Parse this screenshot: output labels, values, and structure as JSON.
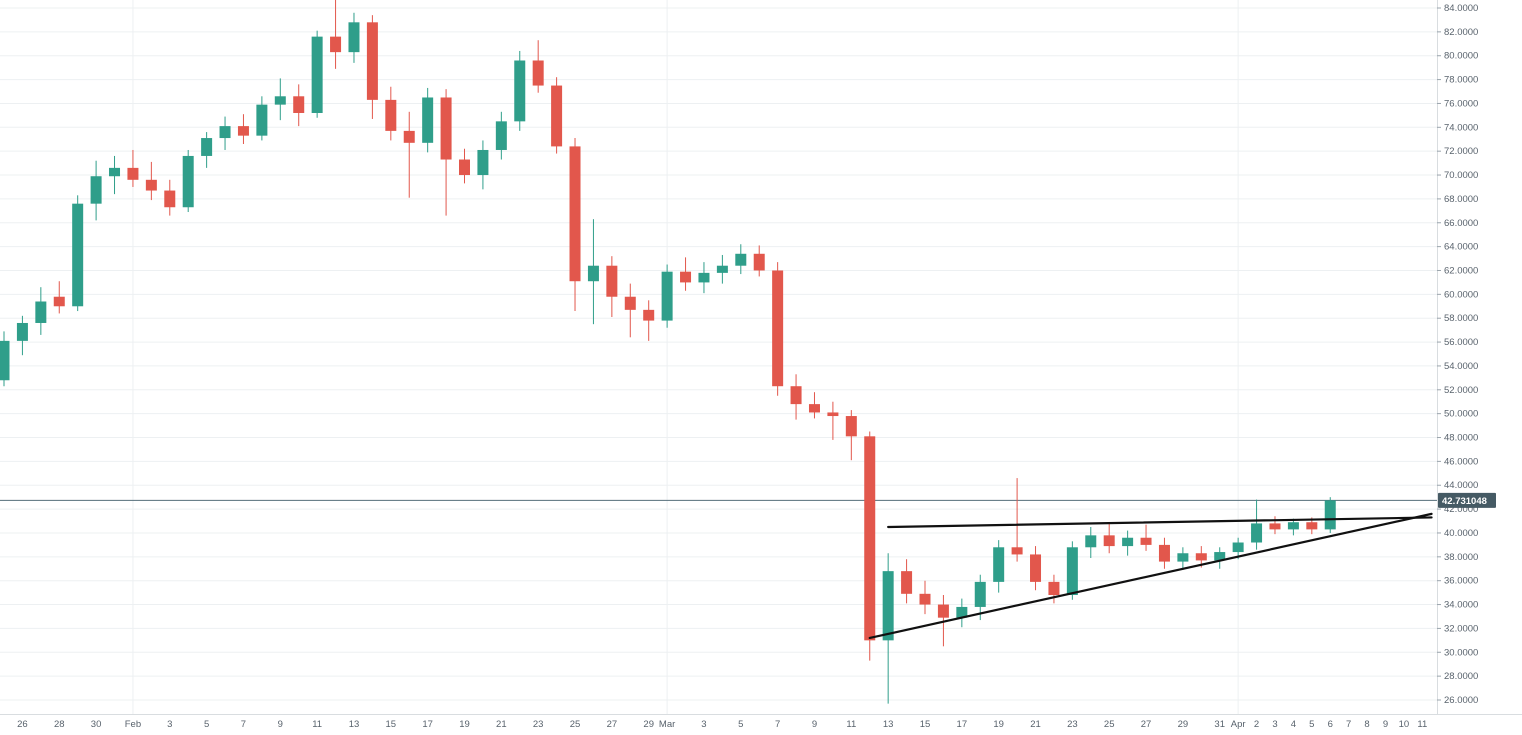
{
  "chart_data": {
    "type": "candlestick",
    "title": "",
    "y_axis": {
      "min": 26,
      "max": 84,
      "step": 2,
      "tick_decimals": 4
    },
    "price_line": {
      "value": 42.731048,
      "label": "42.731048"
    },
    "candles_format": [
      "date",
      "open",
      "high",
      "low",
      "close"
    ],
    "candles": [
      [
        "Jan 25",
        52.8,
        56.9,
        52.3,
        56.1
      ],
      [
        "Jan 26",
        56.1,
        58.2,
        54.9,
        57.6
      ],
      [
        "Jan 27",
        57.6,
        60.6,
        56.6,
        59.4
      ],
      [
        "Jan 28",
        59.8,
        61.1,
        58.4,
        59.0
      ],
      [
        "Jan 29",
        59.0,
        68.3,
        58.6,
        67.6
      ],
      [
        "Jan 30",
        67.6,
        71.2,
        66.2,
        69.9
      ],
      [
        "Jan 31",
        69.9,
        71.6,
        68.4,
        70.6
      ],
      [
        "Feb 1",
        70.6,
        72.1,
        69.0,
        69.6
      ],
      [
        "Feb 2",
        69.6,
        71.1,
        67.9,
        68.7
      ],
      [
        "Feb 3",
        68.7,
        69.6,
        66.6,
        67.3
      ],
      [
        "Feb 4",
        67.3,
        72.1,
        66.9,
        71.6
      ],
      [
        "Feb 5",
        71.6,
        73.6,
        70.6,
        73.1
      ],
      [
        "Feb 6",
        73.1,
        74.9,
        72.1,
        74.1
      ],
      [
        "Feb 7",
        74.1,
        75.1,
        72.6,
        73.3
      ],
      [
        "Feb 8",
        73.3,
        76.6,
        72.9,
        75.9
      ],
      [
        "Feb 9",
        75.9,
        78.1,
        74.6,
        76.6
      ],
      [
        "Feb 10",
        76.6,
        77.6,
        74.1,
        75.2
      ],
      [
        "Feb 11",
        75.2,
        82.1,
        74.8,
        81.6
      ],
      [
        "Feb 12",
        81.6,
        84.7,
        78.9,
        80.3
      ],
      [
        "Feb 13",
        80.3,
        83.6,
        79.4,
        82.8
      ],
      [
        "Feb 14",
        82.8,
        83.4,
        74.7,
        76.3
      ],
      [
        "Feb 15",
        76.3,
        77.4,
        72.9,
        73.7
      ],
      [
        "Feb 16",
        73.7,
        75.3,
        68.1,
        72.7
      ],
      [
        "Feb 17",
        72.7,
        77.3,
        71.9,
        76.5
      ],
      [
        "Feb 18",
        76.5,
        77.2,
        66.6,
        71.3
      ],
      [
        "Feb 19",
        71.3,
        72.2,
        69.3,
        70.0
      ],
      [
        "Feb 20",
        70.0,
        72.9,
        68.8,
        72.1
      ],
      [
        "Feb 21",
        72.1,
        75.3,
        71.3,
        74.5
      ],
      [
        "Feb 22",
        74.5,
        80.4,
        73.7,
        79.6
      ],
      [
        "Feb 23",
        79.6,
        81.3,
        76.9,
        77.5
      ],
      [
        "Feb 24",
        77.5,
        78.2,
        71.8,
        72.4
      ],
      [
        "Feb 25",
        72.4,
        73.1,
        58.6,
        61.1
      ],
      [
        "Feb 26",
        61.1,
        66.3,
        57.5,
        62.4
      ],
      [
        "Feb 27",
        62.4,
        63.2,
        58.1,
        59.8
      ],
      [
        "Feb 28",
        59.8,
        60.9,
        56.4,
        58.7
      ],
      [
        "Feb 29",
        58.7,
        59.5,
        56.1,
        57.8
      ],
      [
        "Mar 1",
        57.8,
        62.5,
        57.2,
        61.9
      ],
      [
        "Mar 2",
        61.9,
        63.1,
        60.3,
        61.0
      ],
      [
        "Mar 3",
        61.0,
        62.7,
        60.1,
        61.8
      ],
      [
        "Mar 4",
        61.8,
        63.3,
        60.9,
        62.4
      ],
      [
        "Mar 5",
        62.4,
        64.2,
        61.7,
        63.4
      ],
      [
        "Mar 6",
        63.4,
        64.1,
        61.5,
        62.0
      ],
      [
        "Mar 7",
        62.0,
        62.7,
        51.5,
        52.3
      ],
      [
        "Mar 8",
        52.3,
        53.3,
        49.5,
        50.8
      ],
      [
        "Mar 9",
        50.8,
        51.8,
        49.6,
        50.1
      ],
      [
        "Mar 10",
        50.1,
        51.0,
        47.8,
        49.8
      ],
      [
        "Mar 11",
        49.8,
        50.3,
        46.1,
        48.1
      ],
      [
        "Mar 12",
        48.1,
        48.5,
        29.3,
        31.0
      ],
      [
        "Mar 13",
        31.0,
        38.3,
        25.7,
        36.8
      ],
      [
        "Mar 14",
        36.8,
        37.8,
        34.1,
        34.9
      ],
      [
        "Mar 15",
        34.9,
        36.0,
        33.2,
        34.0
      ],
      [
        "Mar 16",
        34.0,
        34.8,
        30.5,
        32.9
      ],
      [
        "Mar 17",
        32.9,
        34.5,
        32.1,
        33.8
      ],
      [
        "Mar 18",
        33.8,
        36.5,
        32.7,
        35.9
      ],
      [
        "Mar 19",
        35.9,
        39.4,
        35.0,
        38.8
      ],
      [
        "Mar 20",
        38.8,
        44.6,
        37.6,
        38.2
      ],
      [
        "Mar 21",
        38.2,
        38.9,
        35.2,
        35.9
      ],
      [
        "Mar 22",
        35.9,
        36.5,
        34.1,
        34.8
      ],
      [
        "Mar 23",
        34.8,
        39.3,
        34.4,
        38.8
      ],
      [
        "Mar 24",
        38.8,
        40.5,
        37.9,
        39.8
      ],
      [
        "Mar 25",
        39.8,
        40.8,
        38.3,
        38.9
      ],
      [
        "Mar 26",
        38.9,
        40.2,
        38.1,
        39.6
      ],
      [
        "Mar 27",
        39.6,
        40.7,
        38.5,
        39.0
      ],
      [
        "Mar 28",
        39.0,
        39.6,
        37.0,
        37.6
      ],
      [
        "Mar 29",
        37.6,
        38.8,
        36.9,
        38.3
      ],
      [
        "Mar 30",
        38.3,
        38.9,
        37.1,
        37.7
      ],
      [
        "Mar 31",
        37.7,
        38.8,
        37.0,
        38.4
      ],
      [
        "Apr 1",
        38.4,
        39.6,
        37.8,
        39.2
      ],
      [
        "Apr 2",
        39.2,
        42.8,
        38.6,
        40.8
      ],
      [
        "Apr 3",
        40.8,
        41.4,
        39.9,
        40.3
      ],
      [
        "Apr 4",
        40.3,
        41.2,
        39.8,
        40.9
      ],
      [
        "Apr 5",
        40.9,
        41.3,
        39.9,
        40.3
      ],
      [
        "Apr 6",
        40.3,
        43.0,
        40.0,
        42.731048
      ]
    ],
    "future_slots": 5,
    "x_ticks": [
      {
        "s": 1,
        "l": "26"
      },
      {
        "s": 3,
        "l": "28"
      },
      {
        "s": 5,
        "l": "30"
      },
      {
        "s": 7,
        "l": "Feb"
      },
      {
        "s": 9,
        "l": "3"
      },
      {
        "s": 11,
        "l": "5"
      },
      {
        "s": 13,
        "l": "7"
      },
      {
        "s": 15,
        "l": "9"
      },
      {
        "s": 17,
        "l": "11"
      },
      {
        "s": 19,
        "l": "13"
      },
      {
        "s": 21,
        "l": "15"
      },
      {
        "s": 23,
        "l": "17"
      },
      {
        "s": 25,
        "l": "19"
      },
      {
        "s": 27,
        "l": "21"
      },
      {
        "s": 29,
        "l": "23"
      },
      {
        "s": 31,
        "l": "25"
      },
      {
        "s": 33,
        "l": "27"
      },
      {
        "s": 35,
        "l": "29"
      },
      {
        "s": 36,
        "l": "Mar"
      },
      {
        "s": 38,
        "l": "3"
      },
      {
        "s": 40,
        "l": "5"
      },
      {
        "s": 42,
        "l": "7"
      },
      {
        "s": 44,
        "l": "9"
      },
      {
        "s": 46,
        "l": "11"
      },
      {
        "s": 48,
        "l": "13"
      },
      {
        "s": 50,
        "l": "15"
      },
      {
        "s": 52,
        "l": "17"
      },
      {
        "s": 54,
        "l": "19"
      },
      {
        "s": 56,
        "l": "21"
      },
      {
        "s": 58,
        "l": "23"
      },
      {
        "s": 60,
        "l": "25"
      },
      {
        "s": 62,
        "l": "27"
      },
      {
        "s": 64,
        "l": "29"
      },
      {
        "s": 66,
        "l": "31"
      },
      {
        "s": 67,
        "l": "Apr"
      },
      {
        "s": 68,
        "l": "2"
      },
      {
        "s": 69,
        "l": "3"
      },
      {
        "s": 70,
        "l": "4"
      },
      {
        "s": 71,
        "l": "5"
      },
      {
        "s": 72,
        "l": "6"
      },
      {
        "s": 73,
        "l": "7"
      },
      {
        "s": 74,
        "l": "8"
      },
      {
        "s": 75,
        "l": "9"
      },
      {
        "s": 76,
        "l": "10"
      },
      {
        "s": 77,
        "l": "11"
      }
    ],
    "month_gridline_slots": [
      7,
      36,
      67
    ],
    "trend_lines": [
      {
        "name": "resistance",
        "from": {
          "slot": 48,
          "price": 40.5
        },
        "to": {
          "slot": 77.5,
          "price": 41.3
        }
      },
      {
        "name": "support",
        "from": {
          "slot": 47,
          "price": 31.2
        },
        "to": {
          "slot": 77.5,
          "price": 41.6
        }
      }
    ],
    "legend": [],
    "grid": "horizontal",
    "colors": {
      "up": "#2f9e8a",
      "down": "#e2574c",
      "grid": "#edf0f2",
      "axis_text": "#58626c",
      "price_line": "#546e7a",
      "price_label_bg": "#455a64",
      "price_label_text": "#ffffff",
      "trend_line": "#111111",
      "axis_border": "#d9dde0",
      "background": "#ffffff"
    }
  }
}
